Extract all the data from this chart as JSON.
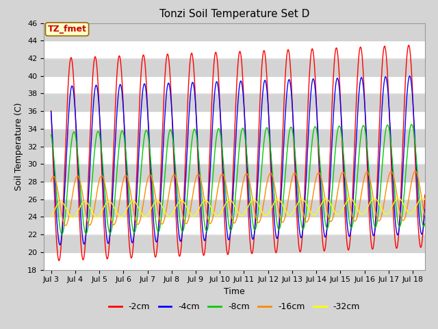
{
  "title": "Tonzi Soil Temperature Set D",
  "xlabel": "Time",
  "ylabel": "Soil Temperature (C)",
  "ylim": [
    18,
    46
  ],
  "yticks": [
    18,
    20,
    22,
    24,
    26,
    28,
    30,
    32,
    34,
    36,
    38,
    40,
    42,
    44,
    46
  ],
  "xtick_labels": [
    "Jul 3",
    "Jul 4",
    "Jul 5",
    "Jul 6",
    "Jul 7",
    "Jul 8",
    "Jul 9",
    "Jul 10",
    "Jul 11",
    "Jul 12",
    "Jul 13",
    "Jul 14",
    "Jul 15",
    "Jul 16",
    "Jul 17",
    "Jul 18"
  ],
  "legend_entries": [
    "-2cm",
    "-4cm",
    "-8cm",
    "-16cm",
    "-32cm"
  ],
  "line_colors": [
    "#ff0000",
    "#0000ff",
    "#00cc00",
    "#ff8800",
    "#ffff00"
  ],
  "annotation_text": "TZ_fmet",
  "annotation_color": "#cc0000",
  "annotation_bg": "#ffffcc",
  "annotation_border": "#996600",
  "bg_light": "#d8d8d8",
  "bg_dark": "#e8e8e8",
  "title_fontsize": 11,
  "axis_fontsize": 9,
  "tick_fontsize": 8,
  "legend_fontsize": 9
}
